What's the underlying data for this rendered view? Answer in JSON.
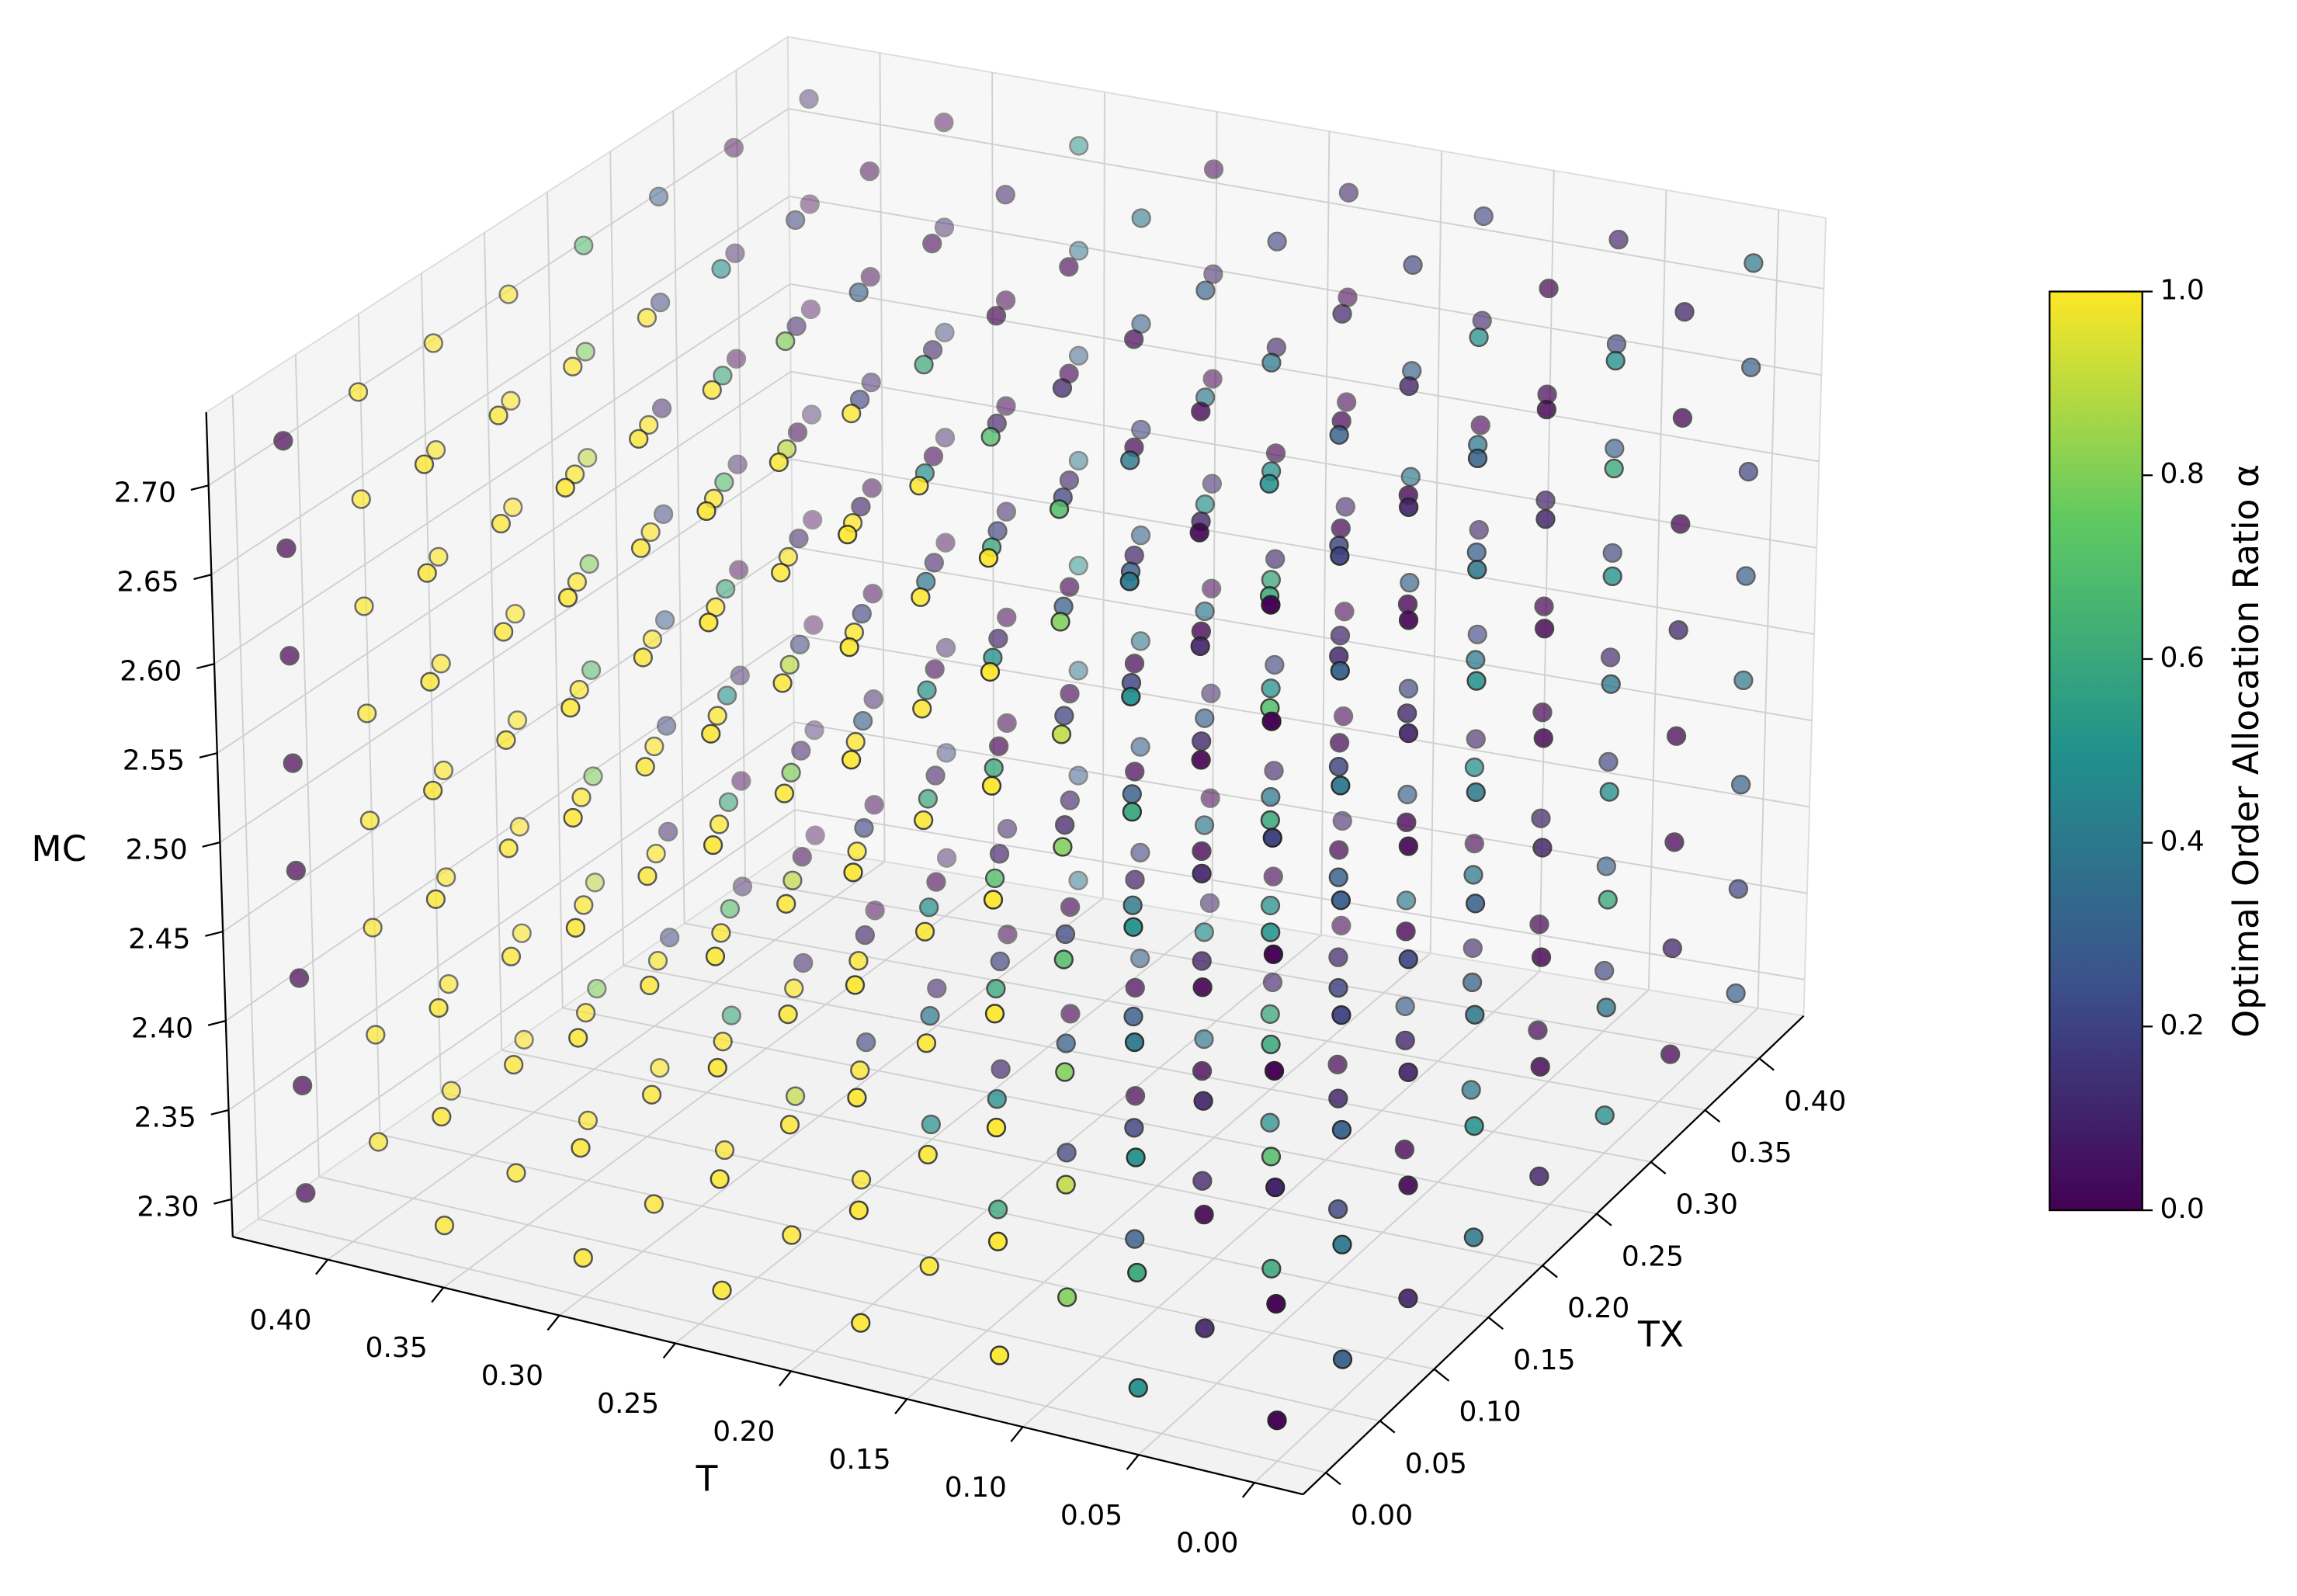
{
  "chart_data": {
    "type": "scatter3d",
    "xlabel": "T",
    "ylabel": "TX",
    "zlabel": "MC",
    "colorbar_label": "Optimal Order Allocation Ratio α",
    "colormap": "viridis",
    "clim": [
      0,
      1
    ],
    "colorbar_ticks": [
      {
        "value": 0,
        "label": "0.0"
      },
      0.2,
      0.4,
      0.6,
      0.8,
      {
        "value": 1,
        "label": "1.0"
      }
    ],
    "xlim": [
      -0.021,
      0.441
    ],
    "ylim": [
      -0.021,
      0.441
    ],
    "zlim": [
      2.279,
      2.741
    ],
    "xticks": [
      {
        "value": 0,
        "label": "0.00"
      },
      0.05,
      {
        "value": 0.1,
        "label": "0.10"
      },
      0.15,
      {
        "value": 0.2,
        "label": "0.20"
      },
      0.25,
      {
        "value": 0.3,
        "label": "0.30"
      },
      0.35,
      {
        "value": 0.4,
        "label": "0.40"
      }
    ],
    "yticks": [
      {
        "value": 0,
        "label": "0.00"
      },
      0.05,
      {
        "value": 0.1,
        "label": "0.10"
      },
      0.15,
      {
        "value": 0.2,
        "label": "0.20"
      },
      0.25,
      {
        "value": 0.3,
        "label": "0.30"
      },
      0.35,
      {
        "value": 0.4,
        "label": "0.40"
      }
    ],
    "zticks": [
      {
        "value": 2.3,
        "label": "2.30"
      },
      2.35,
      {
        "value": 2.4,
        "label": "2.40"
      },
      2.45,
      {
        "value": 2.5,
        "label": "2.50"
      },
      2.55,
      {
        "value": 2.6,
        "label": "2.60"
      },
      2.65,
      {
        "value": 2.7,
        "label": "2.70"
      }
    ],
    "x": [
      0,
      0.06,
      0.12,
      0.18,
      0.24,
      0.3,
      0.36,
      0.42
    ],
    "y": [
      0,
      0.06,
      0.12,
      0.18,
      0.24,
      0.3,
      0.36,
      0.42
    ],
    "z": [
      2.3,
      2.36,
      2.42,
      2.48,
      2.54,
      2.6,
      2.66,
      2.72
    ],
    "values": [
      [
        [
          0,
          0,
          0.1,
          0,
          0,
          0.2,
          0,
          0
        ],
        [
          0.3,
          0.4,
          0.3,
          0.2,
          0.3,
          0.4,
          0.3,
          0.2
        ],
        [
          0.1,
          0,
          0.1,
          0.2,
          0,
          0.1,
          0,
          0.1
        ],
        [
          0.4,
          0.5,
          0.4,
          0.3,
          0.4,
          0.5,
          0.4,
          0.3
        ],
        [
          0.1,
          0,
          0,
          0.1,
          0,
          0,
          0.1,
          0
        ],
        [
          0.5,
          0.4,
          0.6,
          0.5,
          0.4,
          0.5,
          0.6,
          0.5
        ],
        [
          0,
          0.1,
          0,
          0,
          0.1,
          0,
          0,
          0.1
        ],
        [
          0.3,
          0.2,
          0.3,
          0.4,
          0.3,
          0.2,
          0.3,
          0.4
        ]
      ],
      [
        [
          0.5,
          0.6,
          0.5,
          0.4,
          0.5,
          0.6,
          0.5,
          0.4
        ],
        [
          0.1,
          0,
          0.1,
          0,
          0.1,
          0,
          0.1,
          0
        ],
        [
          0.6,
          0.7,
          0.6,
          0.5,
          0.6,
          0.7,
          0.6,
          0.5
        ],
        [
          0.2,
          0.1,
          0.2,
          0.3,
          0.2,
          0.1,
          0.2,
          0.3
        ],
        [
          0,
          0.1,
          0,
          0,
          0.1,
          0,
          0,
          0.1
        ],
        [
          0.4,
          0.3,
          0.4,
          0.5,
          0.4,
          0.3,
          0.4,
          0.5
        ],
        [
          0,
          0,
          0.1,
          0,
          0,
          0.1,
          0,
          0
        ],
        [
          0.2,
          0.3,
          0.2,
          0.1,
          0.2,
          0.3,
          0.2,
          0.1
        ]
      ],
      [
        [
          1,
          1,
          1,
          1,
          1,
          1,
          1,
          1
        ],
        [
          0.8,
          0.9,
          0.8,
          0.7,
          0.8,
          0.9,
          0.8,
          0.7
        ],
        [
          0.3,
          0.2,
          0.3,
          0.4,
          0.3,
          0.2,
          0.3,
          0.4
        ],
        [
          0.1,
          0,
          0.1,
          0,
          0.1,
          0,
          0.1,
          0
        ],
        [
          0.5,
          0.6,
          0.5,
          0.4,
          0.5,
          0.6,
          0.5,
          0.4
        ],
        [
          0,
          0.1,
          0,
          0,
          0.1,
          0,
          0,
          0.1
        ],
        [
          0.3,
          0.4,
          0.3,
          0.2,
          0.3,
          0.4,
          0.3,
          0.2
        ],
        [
          0.1,
          0,
          0.1,
          0.2,
          0.1,
          0,
          0.1,
          0.2
        ]
      ],
      [
        [
          1,
          1,
          1,
          1,
          1,
          1,
          1,
          1
        ],
        [
          1,
          1,
          1,
          1,
          1,
          1,
          1,
          1
        ],
        [
          0.6,
          0.5,
          0.6,
          0.7,
          0.6,
          0.5,
          0.6,
          0.7
        ],
        [
          0.2,
          0.3,
          0.2,
          0.1,
          0.2,
          0.3,
          0.2,
          0.1
        ],
        [
          0,
          0,
          0.1,
          0,
          0,
          0.1,
          0,
          0
        ],
        [
          0.4,
          0.5,
          0.4,
          0.3,
          0.4,
          0.5,
          0.4,
          0.3
        ],
        [
          0.1,
          0,
          0.1,
          0.2,
          0.1,
          0,
          0.1,
          0.2
        ],
        [
          0,
          0.1,
          0,
          0,
          0.1,
          0,
          0,
          0.1
        ]
      ],
      [
        [
          1,
          1,
          1,
          1,
          1,
          1,
          1,
          1
        ],
        [
          1,
          1,
          1,
          1,
          1,
          1,
          1,
          1
        ],
        [
          1,
          1,
          1,
          1,
          1,
          1,
          1,
          1
        ],
        [
          0.5,
          0.4,
          0.5,
          0.6,
          0.5,
          0.4,
          0.5,
          0.6
        ],
        [
          0.1,
          0.2,
          0.1,
          0,
          0.1,
          0.2,
          0.1,
          0
        ],
        [
          0,
          0,
          0.1,
          0,
          0,
          0.1,
          0,
          0
        ],
        [
          0.3,
          0.2,
          0.3,
          0.4,
          0.3,
          0.2,
          0.3,
          0.4
        ],
        [
          0.1,
          0,
          0.1,
          0,
          0.1,
          0,
          0.1,
          0
        ]
      ],
      [
        [
          1,
          1,
          1,
          1,
          1,
          1,
          1,
          1
        ],
        [
          1,
          1,
          1,
          1,
          1,
          1,
          1,
          1
        ],
        [
          1,
          1,
          1,
          1,
          1,
          1,
          1,
          1
        ],
        [
          0.9,
          1,
          0.9,
          0.8,
          0.9,
          1,
          0.9,
          0.8
        ],
        [
          0.2,
          0.1,
          0.2,
          0.3,
          0.2,
          0.1,
          0.2,
          0.3
        ],
        [
          0.1,
          0,
          0.1,
          0,
          0.1,
          0,
          0.1,
          0
        ],
        [
          0,
          0.1,
          0,
          0,
          0.1,
          0,
          0,
          0.1
        ],
        [
          0.4,
          0.3,
          0.4,
          0.5,
          0.4,
          0.3,
          0.4,
          0.5
        ]
      ],
      [
        [
          1,
          1,
          1,
          1,
          1,
          1,
          1,
          1
        ],
        [
          1,
          1,
          1,
          1,
          1,
          1,
          1,
          1
        ],
        [
          1,
          1,
          1,
          1,
          1,
          1,
          1,
          1
        ],
        [
          1,
          1,
          1,
          1,
          1,
          1,
          1,
          1
        ],
        [
          0.6,
          0.7,
          0.6,
          0.5,
          0.6,
          0.7,
          0.6,
          0.5
        ],
        [
          0.1,
          0,
          0.1,
          0.2,
          0.1,
          0,
          0.1,
          0.2
        ],
        [
          0,
          0,
          0.1,
          0,
          0,
          0.1,
          0,
          0
        ],
        [
          0.1,
          0.2,
          0.1,
          0,
          0.1,
          0.2,
          0.1,
          0
        ]
      ],
      [
        [
          0,
          0,
          0,
          0,
          0,
          0,
          0,
          0
        ],
        [
          1,
          1,
          1,
          1,
          1,
          1,
          1,
          1
        ],
        [
          1,
          1,
          1,
          1,
          1,
          1,
          1,
          1
        ],
        [
          1,
          1,
          1,
          1,
          1,
          1,
          1,
          1
        ],
        [
          0.8,
          0.9,
          0.8,
          0.7,
          0.8,
          0.9,
          0.8,
          0.7
        ],
        [
          0.2,
          0.1,
          0.2,
          0.3,
          0.2,
          0.1,
          0.2,
          0.3
        ],
        [
          0.1,
          0,
          0.1,
          0,
          0.1,
          0,
          0.1,
          0
        ],
        [
          0,
          0.1,
          0,
          0,
          0.1,
          0,
          0,
          0.1
        ]
      ]
    ]
  }
}
